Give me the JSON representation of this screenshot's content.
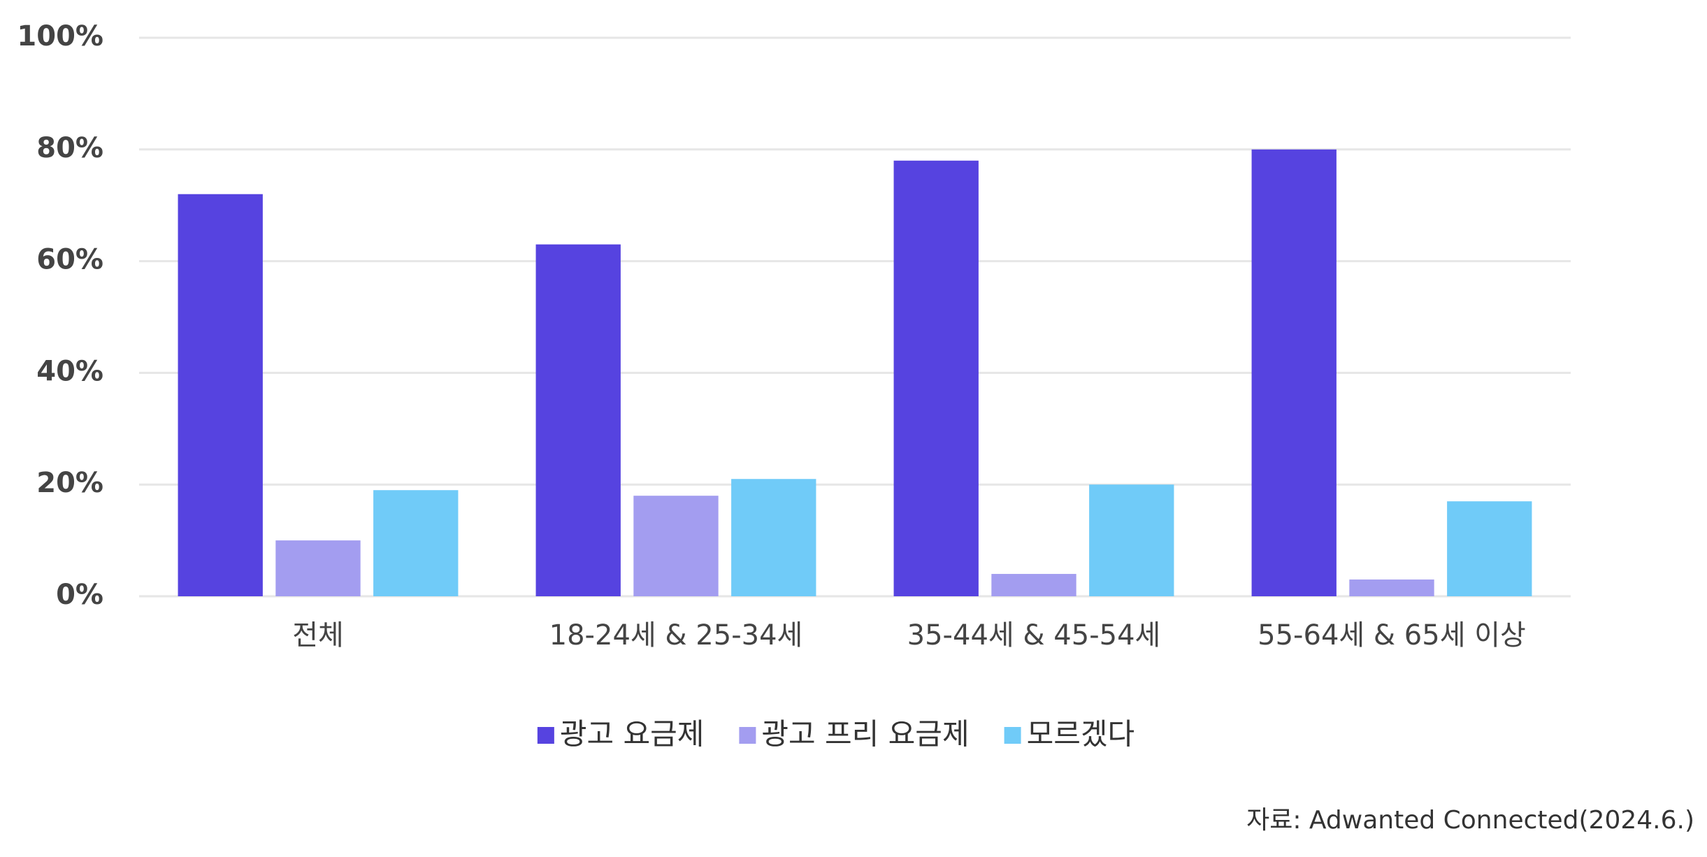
{
  "chart_data": {
    "type": "bar",
    "categories": [
      "전체",
      "18-24세 & 25-34세",
      "35-44세 & 45-54세",
      "55-64세 & 65세 이상"
    ],
    "series": [
      {
        "name": "광고 요금제",
        "color": "#5643e0",
        "values": [
          72,
          63,
          78,
          80
        ]
      },
      {
        "name": "광고 프리 요금제",
        "color": "#a39df0",
        "values": [
          10,
          18,
          4,
          3
        ]
      },
      {
        "name": "모르겠다",
        "color": "#70cbf8",
        "values": [
          19,
          21,
          20,
          17
        ]
      }
    ],
    "ylim": [
      0,
      100
    ],
    "yticks": [
      {
        "value": 0,
        "label": "0%"
      },
      {
        "value": 20,
        "label": "20%"
      },
      {
        "value": 40,
        "label": "40%"
      },
      {
        "value": 60,
        "label": "60%"
      },
      {
        "value": 80,
        "label": "80%"
      },
      {
        "value": 100,
        "label": "100%"
      }
    ],
    "grid": true,
    "legend": "bottom",
    "source": "자료: Adwanted Connected(2024.6.)"
  }
}
